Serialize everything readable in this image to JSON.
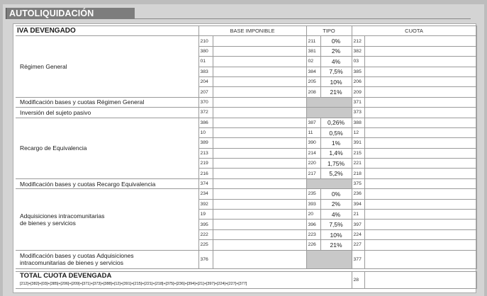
{
  "title": "AUTOLIQUIDACIÓN",
  "section": "IVA DEVENGADO",
  "headers": {
    "base": "BASE IMPONIBLE",
    "tipo": "TIPO",
    "cuota": "CUOTA"
  },
  "groups": {
    "regimen": {
      "label": "Régimen General",
      "rows": [
        {
          "b": "210",
          "t": "211",
          "r": "0%",
          "c": "212"
        },
        {
          "b": "380",
          "t": "381",
          "r": "2%",
          "c": "382"
        },
        {
          "b": "01",
          "t": "02",
          "r": "4%",
          "c": "03"
        },
        {
          "b": "383",
          "t": "384",
          "r": "7,5%",
          "c": "385"
        },
        {
          "b": "204",
          "t": "205",
          "r": "10%",
          "c": "206"
        },
        {
          "b": "207",
          "t": "208",
          "r": "21%",
          "c": "209"
        }
      ]
    },
    "mod_rg": {
      "label": "Modificación bases y cuotas Régimen General",
      "b": "370",
      "c": "371"
    },
    "isp": {
      "label": "Inversión del sujeto pasivo",
      "b": "372",
      "c": "373"
    },
    "recargo": {
      "label": "Recargo de Equivalencia",
      "rows": [
        {
          "b": "386",
          "t": "387",
          "r": "0,26%",
          "c": "388"
        },
        {
          "b": "10",
          "t": "11",
          "r": "0,5%",
          "c": "12"
        },
        {
          "b": "389",
          "t": "390",
          "r": "1%",
          "c": "391"
        },
        {
          "b": "213",
          "t": "214",
          "r": "1,4%",
          "c": "215"
        },
        {
          "b": "219",
          "t": "220",
          "r": "1,75%",
          "c": "221"
        },
        {
          "b": "216",
          "t": "217",
          "r": "5,2%",
          "c": "218"
        }
      ]
    },
    "mod_re": {
      "label": "Modificación bases y cuotas Recargo Equivalencia",
      "b": "374",
      "c": "375"
    },
    "aic": {
      "label1": "Adquisiciones intracomunitarias",
      "label2": "de bienes y servicios",
      "rows": [
        {
          "b": "234",
          "t": "235",
          "r": "0%",
          "c": "236"
        },
        {
          "b": "392",
          "t": "393",
          "r": "2%",
          "c": "394"
        },
        {
          "b": "19",
          "t": "20",
          "r": "4%",
          "c": "21"
        },
        {
          "b": "395",
          "t": "396",
          "r": "7,5%",
          "c": "397"
        },
        {
          "b": "222",
          "t": "223",
          "r": "10%",
          "c": "224"
        },
        {
          "b": "225",
          "t": "226",
          "r": "21%",
          "c": "227"
        }
      ]
    },
    "mod_aic": {
      "label1": "Modificación bases y cuotas Adquisiciones",
      "label2": "intracomunitarias de bienes y servicios",
      "b": "376",
      "c": "377"
    }
  },
  "total": {
    "label": "TOTAL CUOTA DEVENGADA",
    "formula": "[212]+[382]+[03]+[385]+[206]+[209]+[371]+[373]+[388]+[12]+[391]+[215]+[221]+[218]+[375]+[236]+[394]+[21]+[397]+[224]+[227]+[377]",
    "code": "28"
  }
}
